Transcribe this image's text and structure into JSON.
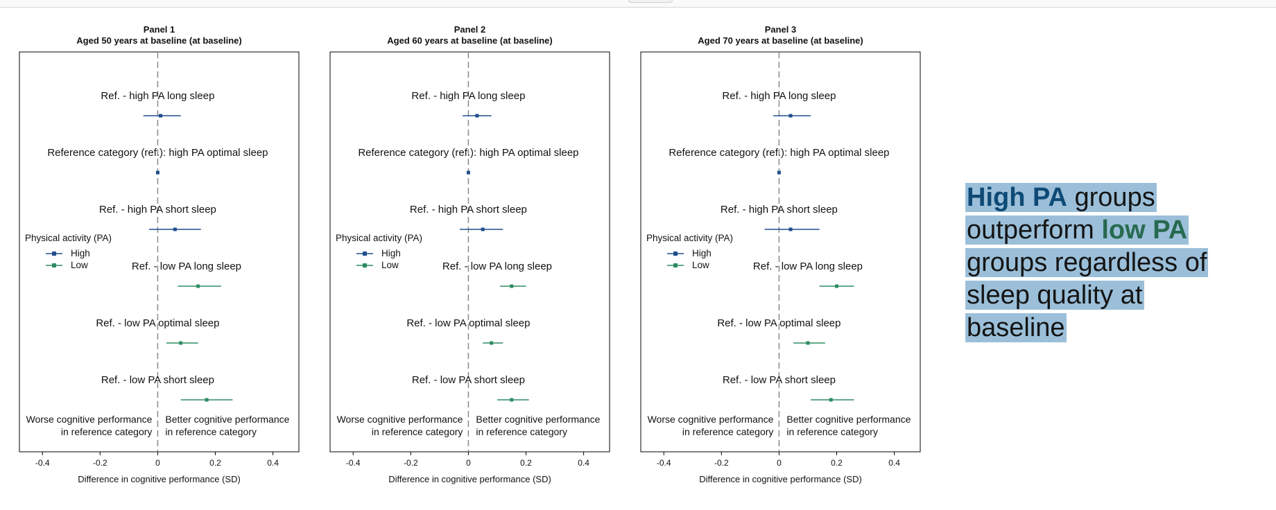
{
  "colors": {
    "high": "#1f4e8c",
    "low": "#2e8b62",
    "callout_bg": "#9bbfd9",
    "callout_high": "#0e4a75",
    "callout_low": "#286a50"
  },
  "callout": {
    "high_pa": "High PA",
    "part1": " groups outperform ",
    "low_pa": "low PA",
    "part2": " groups regardless of sleep quality at baseline"
  },
  "chart_data": [
    {
      "type": "forest",
      "title": "Panel 1",
      "subtitle": "Aged 50 years at baseline (at baseline)",
      "xlabel": "Difference in cognitive performance (SD)",
      "xlim": [
        -0.48,
        0.49
      ],
      "xticks": [
        "-0.4",
        "-0.2",
        "0",
        "0.2",
        "0.4"
      ],
      "legend": {
        "title": "Physical activity (PA)",
        "items": [
          "High",
          "Low"
        ]
      },
      "notes": {
        "left": [
          "Worse cognitive performance",
          "in reference category"
        ],
        "right": [
          "Better cognitive performance",
          "in reference category"
        ]
      },
      "rows": [
        {
          "label": "Ref. - high PA long sleep",
          "group": "High",
          "est": 0.01,
          "lo": -0.05,
          "hi": 0.08
        },
        {
          "label": "Reference category (ref.): high PA optimal sleep",
          "group": "High",
          "est": 0.0,
          "lo": 0.0,
          "hi": 0.0
        },
        {
          "label": "Ref. - high PA short sleep",
          "group": "High",
          "est": 0.06,
          "lo": -0.03,
          "hi": 0.15
        },
        {
          "label": "Ref. - low PA long sleep",
          "group": "Low",
          "est": 0.14,
          "lo": 0.07,
          "hi": 0.22
        },
        {
          "label": "Ref. - low PA optimal sleep",
          "group": "Low",
          "est": 0.08,
          "lo": 0.03,
          "hi": 0.14
        },
        {
          "label": "Ref. - low PA short sleep",
          "group": "Low",
          "est": 0.17,
          "lo": 0.08,
          "hi": 0.26
        }
      ]
    },
    {
      "type": "forest",
      "title": "Panel 2",
      "subtitle": "Aged 60 years at baseline (at baseline)",
      "xlabel": "Difference in cognitive performance (SD)",
      "xlim": [
        -0.48,
        0.49
      ],
      "xticks": [
        "-0.4",
        "-0.2",
        "0",
        "0.2",
        "0.4"
      ],
      "legend": {
        "title": "Physical activity (PA)",
        "items": [
          "High",
          "Low"
        ]
      },
      "notes": {
        "left": [
          "Worse cognitive performance",
          "in reference category"
        ],
        "right": [
          "Better cognitive performance",
          "in reference category"
        ]
      },
      "rows": [
        {
          "label": "Ref. - high PA long sleep",
          "group": "High",
          "est": 0.03,
          "lo": -0.02,
          "hi": 0.08
        },
        {
          "label": "Reference category (ref.): high PA optimal sleep",
          "group": "High",
          "est": 0.0,
          "lo": 0.0,
          "hi": 0.0
        },
        {
          "label": "Ref. - high PA short sleep",
          "group": "High",
          "est": 0.05,
          "lo": -0.03,
          "hi": 0.12
        },
        {
          "label": "Ref. - low PA long sleep",
          "group": "Low",
          "est": 0.15,
          "lo": 0.11,
          "hi": 0.2
        },
        {
          "label": "Ref. - low PA optimal sleep",
          "group": "Low",
          "est": 0.08,
          "lo": 0.05,
          "hi": 0.12
        },
        {
          "label": "Ref. - low PA short sleep",
          "group": "Low",
          "est": 0.15,
          "lo": 0.1,
          "hi": 0.21
        }
      ]
    },
    {
      "type": "forest",
      "title": "Panel 3",
      "subtitle": "Aged 70 years at baseline (at baseline)",
      "xlabel": "Difference in cognitive performance (SD)",
      "xlim": [
        -0.48,
        0.49
      ],
      "xticks": [
        "-0.4",
        "-0.2",
        "0",
        "0.2",
        "0.4"
      ],
      "legend": {
        "title": "Physical activity (PA)",
        "items": [
          "High",
          "Low"
        ]
      },
      "notes": {
        "left": [
          "Worse cognitive performance",
          "in reference category"
        ],
        "right": [
          "Better cognitive performance",
          "in reference category"
        ]
      },
      "rows": [
        {
          "label": "Ref. - high PA long sleep",
          "group": "High",
          "est": 0.04,
          "lo": -0.02,
          "hi": 0.11
        },
        {
          "label": "Reference category (ref.): high PA optimal sleep",
          "group": "High",
          "est": 0.0,
          "lo": 0.0,
          "hi": 0.0
        },
        {
          "label": "Ref. - high PA short sleep",
          "group": "High",
          "est": 0.04,
          "lo": -0.05,
          "hi": 0.14
        },
        {
          "label": "Ref. - low PA long sleep",
          "group": "Low",
          "est": 0.2,
          "lo": 0.14,
          "hi": 0.26
        },
        {
          "label": "Ref. - low PA optimal sleep",
          "group": "Low",
          "est": 0.1,
          "lo": 0.05,
          "hi": 0.16
        },
        {
          "label": "Ref. - low PA short sleep",
          "group": "Low",
          "est": 0.18,
          "lo": 0.11,
          "hi": 0.26
        }
      ]
    }
  ]
}
